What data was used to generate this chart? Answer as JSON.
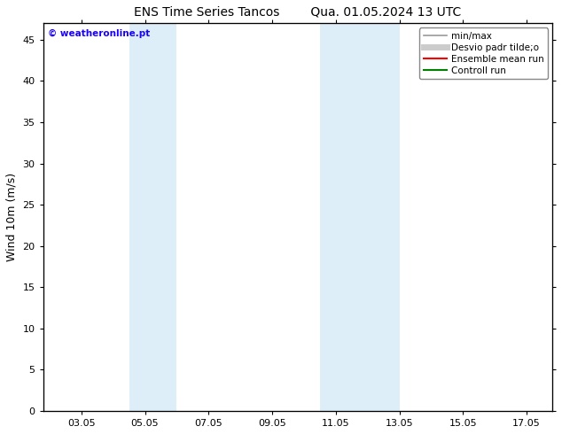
{
  "title_left": "ENS Time Series Tancos",
  "title_right": "Qua. 01.05.2024 13 UTC",
  "ylabel": "Wind 10m (m/s)",
  "ylim": [
    0,
    47
  ],
  "yticks": [
    0,
    5,
    10,
    15,
    20,
    25,
    30,
    35,
    40,
    45
  ],
  "xtick_labels": [
    "03.05",
    "05.05",
    "07.05",
    "09.05",
    "11.05",
    "13.05",
    "15.05",
    "17.05"
  ],
  "xtick_positions": [
    3,
    5,
    7,
    9,
    11,
    13,
    15,
    17
  ],
  "xmin": 1.8,
  "xmax": 17.8,
  "shaded_bands": [
    {
      "xmin": 4.5,
      "xmax": 6.0,
      "color": "#ddeef8"
    },
    {
      "xmin": 10.5,
      "xmax": 13.0,
      "color": "#ddeef8"
    }
  ],
  "legend_entries": [
    {
      "label": "min/max",
      "color": "#999999",
      "lw": 1.2
    },
    {
      "label": "Desvio padr tilde;o",
      "color": "#cccccc",
      "lw": 5
    },
    {
      "label": "Ensemble mean run",
      "color": "red",
      "lw": 1.5
    },
    {
      "label": "Controll run",
      "color": "green",
      "lw": 1.5
    }
  ],
  "watermark": "© weatheronline.pt",
  "watermark_color": "#1a00ff",
  "bg_color": "#ffffff",
  "title_fontsize": 10,
  "label_fontsize": 9,
  "tick_fontsize": 8,
  "legend_fontsize": 7.5
}
